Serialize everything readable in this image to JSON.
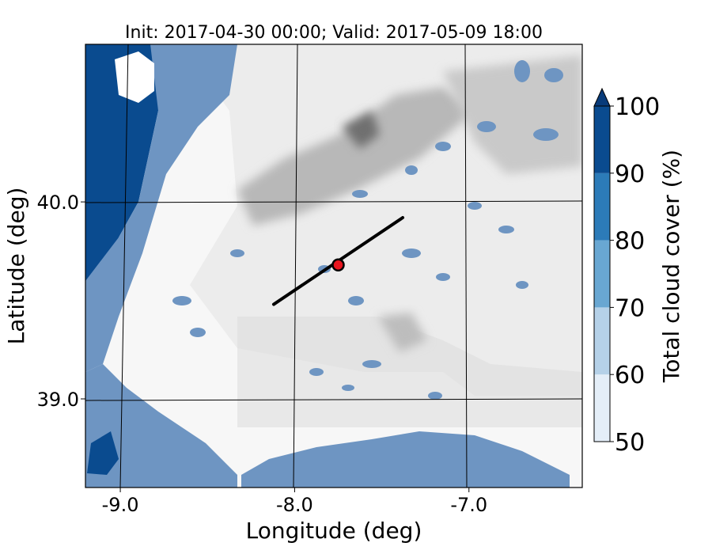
{
  "chart_data": {
    "type": "heatmap",
    "title": "Init: 2017-04-30 00:00; Valid: 2017-05-09 18:00",
    "xlabel": "Longitude (deg)",
    "ylabel": "Latitude (deg)",
    "xlim": [
      -9.2,
      -6.35
    ],
    "ylim": [
      38.55,
      40.8
    ],
    "xticks": [
      {
        "value": -9.0,
        "label": "-9.0"
      },
      {
        "value": -8.0,
        "label": "-8.0"
      },
      {
        "value": -7.0,
        "label": "-7.0"
      }
    ],
    "yticks": [
      {
        "value": 40.0,
        "label": "40.0"
      },
      {
        "value": 39.0,
        "label": "39.0"
      }
    ],
    "grid": true,
    "cross_section": {
      "start": [
        -8.12,
        39.48
      ],
      "end": [
        -7.38,
        39.92
      ],
      "color": "#000000"
    },
    "marker": {
      "lon": -7.75,
      "lat": 39.68,
      "color": "#e8141e"
    },
    "colorbar": {
      "label": "Total cloud cover (%)",
      "range": [
        50,
        100
      ],
      "extend": "max",
      "levels": [
        50,
        60,
        70,
        80,
        90,
        100
      ],
      "tick_labels": [
        "50",
        "60",
        "70",
        "80",
        "90",
        "100"
      ],
      "colors": [
        "#e4eef8",
        "#b5d1e8",
        "#69a7d2",
        "#2c7bb8",
        "#0a4b8f",
        "#083b7a"
      ]
    }
  }
}
